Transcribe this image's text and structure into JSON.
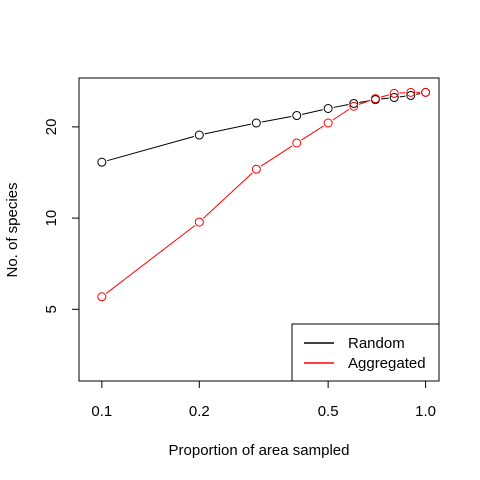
{
  "chart_data": {
    "type": "line",
    "xlabel": "Proportion of area sampled",
    "ylabel": "No. of species",
    "x_scale": "log",
    "y_scale": "log",
    "xlim": [
      0.085,
      1.1
    ],
    "ylim": [
      2.9,
      29
    ],
    "x_ticks": [
      0.1,
      0.2,
      0.5,
      1.0
    ],
    "x_tick_labels": [
      "0.1",
      "0.2",
      "0.5",
      "1.0"
    ],
    "y_ticks": [
      5,
      10,
      20
    ],
    "y_tick_labels": [
      "5",
      "10",
      "20"
    ],
    "grid": false,
    "legend_position": "bottom-right",
    "x": [
      0.1,
      0.2,
      0.3,
      0.4,
      0.5,
      0.6,
      0.7,
      0.8,
      0.9,
      1.0
    ],
    "series": [
      {
        "name": "Random",
        "color": "#000000",
        "values": [
          15.3,
          18.8,
          20.6,
          21.8,
          23.0,
          23.9,
          24.6,
          25.0,
          25.4,
          26.0
        ]
      },
      {
        "name": "Aggregated",
        "color": "#ff0000",
        "values": [
          5.5,
          9.7,
          14.5,
          17.7,
          20.6,
          23.4,
          24.8,
          25.8,
          26.0,
          26.0
        ]
      }
    ]
  }
}
